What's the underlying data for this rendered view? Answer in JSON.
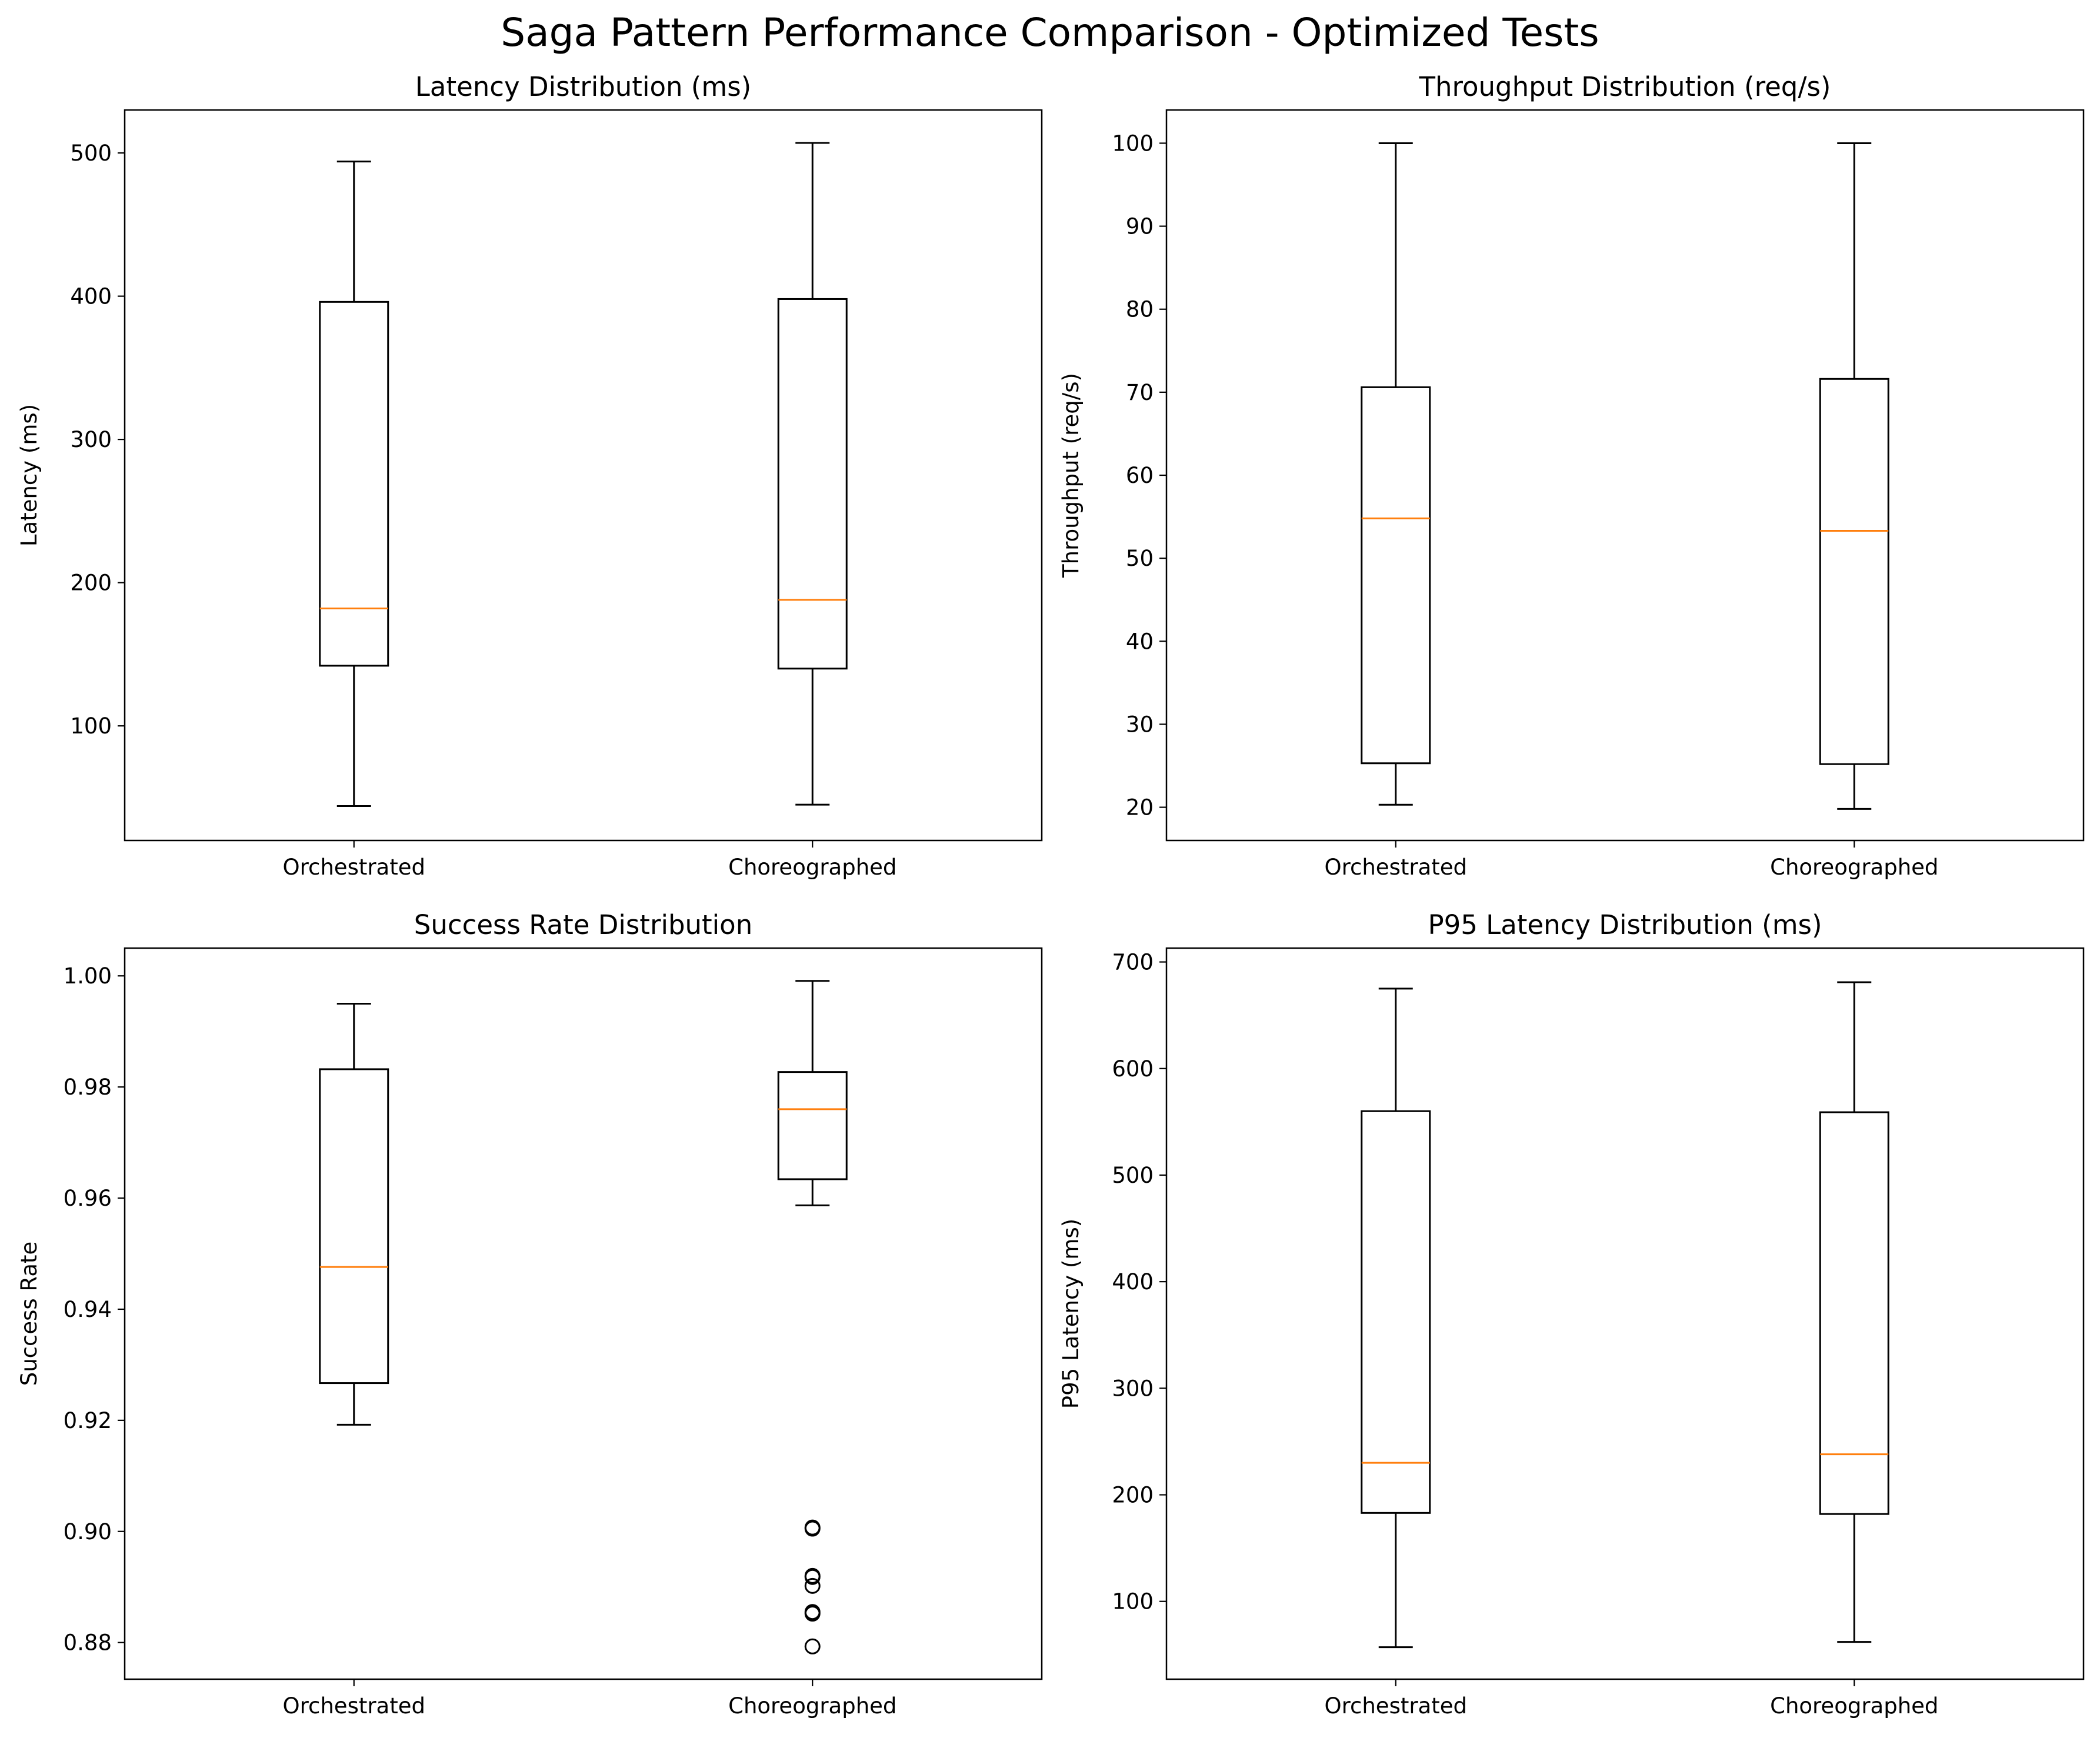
{
  "figure": {
    "title": "Saga Pattern Performance Comparison - Optimized Tests"
  },
  "colors": {
    "box": "#000000",
    "median": "#ff7f0e",
    "flier": "#000000",
    "background": "#ffffff"
  },
  "chart_data": [
    {
      "type": "boxplot",
      "title": "Latency Distribution (ms)",
      "xlabel": "",
      "ylabel": "Latency (ms)",
      "categories": [
        "Orchestrated",
        "Choreographed"
      ],
      "ylim": [
        20,
        530
      ],
      "yticks": [
        100,
        200,
        300,
        400,
        500
      ],
      "tick_labels": [
        "100",
        "200",
        "300",
        "400",
        "500"
      ],
      "boxes": [
        {
          "whislo": 44,
          "q1": 142,
          "med": 182,
          "q3": 396,
          "whishi": 494,
          "fliers": []
        },
        {
          "whislo": 45,
          "q1": 140,
          "med": 188,
          "q3": 398,
          "whishi": 507,
          "fliers": []
        }
      ]
    },
    {
      "type": "boxplot",
      "title": "Throughput Distribution (req/s)",
      "xlabel": "",
      "ylabel": "Throughput (req/s)",
      "categories": [
        "Orchestrated",
        "Choreographed"
      ],
      "ylim": [
        16,
        104
      ],
      "yticks": [
        20,
        30,
        40,
        50,
        60,
        70,
        80,
        90,
        100
      ],
      "tick_labels": [
        "20",
        "30",
        "40",
        "50",
        "60",
        "70",
        "80",
        "90",
        "100"
      ],
      "boxes": [
        {
          "whislo": 20.3,
          "q1": 25.3,
          "med": 54.8,
          "q3": 70.6,
          "whishi": 100,
          "fliers": []
        },
        {
          "whislo": 19.8,
          "q1": 25.2,
          "med": 53.3,
          "q3": 71.6,
          "whishi": 100,
          "fliers": []
        }
      ]
    },
    {
      "type": "boxplot",
      "title": "Success Rate Distribution",
      "xlabel": "",
      "ylabel": "Success Rate",
      "categories": [
        "Orchestrated",
        "Choreographed"
      ],
      "ylim": [
        0.8734,
        1.005
      ],
      "yticks": [
        0.88,
        0.9,
        0.92,
        0.94,
        0.96,
        0.98,
        1.0
      ],
      "tick_labels": [
        "0.88",
        "0.90",
        "0.92",
        "0.94",
        "0.96",
        "0.98",
        "1.00"
      ],
      "boxes": [
        {
          "whislo": 0.9192,
          "q1": 0.9267,
          "med": 0.9476,
          "q3": 0.9832,
          "whishi": 0.995,
          "fliers": []
        },
        {
          "whislo": 0.9587,
          "q1": 0.9634,
          "med": 0.976,
          "q3": 0.9827,
          "whishi": 0.9991,
          "fliers": [
            0.9005,
            0.9007,
            0.892,
            0.8918,
            0.8902,
            0.8855,
            0.8852,
            0.8793
          ]
        }
      ]
    },
    {
      "type": "boxplot",
      "title": "P95 Latency Distribution (ms)",
      "xlabel": "",
      "ylabel": "P95 Latency (ms)",
      "categories": [
        "Orchestrated",
        "Choreographed"
      ],
      "ylim": [
        27,
        713
      ],
      "yticks": [
        100,
        200,
        300,
        400,
        500,
        600,
        700
      ],
      "tick_labels": [
        "100",
        "200",
        "300",
        "400",
        "500",
        "600",
        "700"
      ],
      "boxes": [
        {
          "whislo": 57,
          "q1": 183,
          "med": 230,
          "q3": 560,
          "whishi": 675,
          "fliers": []
        },
        {
          "whislo": 62,
          "q1": 182,
          "med": 238,
          "q3": 559,
          "whishi": 681,
          "fliers": []
        }
      ]
    }
  ]
}
